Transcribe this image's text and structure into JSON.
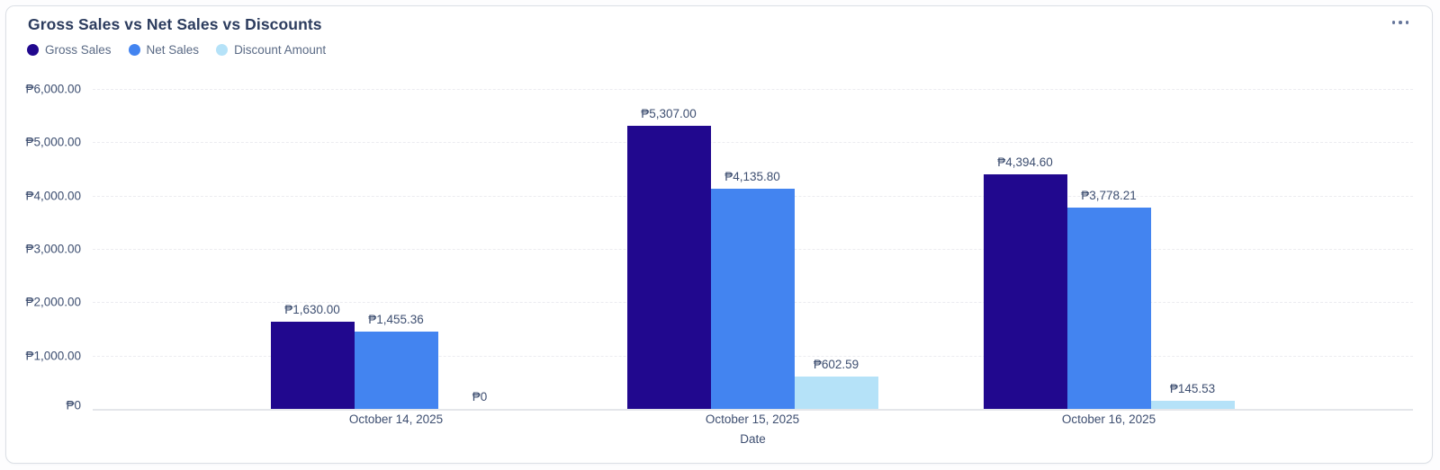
{
  "card": {
    "title": "Gross Sales vs Net Sales vs Discounts",
    "menu_icon": "ellipsis-icon"
  },
  "legend": [
    {
      "label": "Gross Sales",
      "color": "#21088e"
    },
    {
      "label": "Net Sales",
      "color": "#4384f0"
    },
    {
      "label": "Discount Amount",
      "color": "#b5e2f8"
    }
  ],
  "chart_data": {
    "type": "bar",
    "title": "Gross Sales vs Net Sales vs Discounts",
    "xlabel": "Date",
    "ylabel": "",
    "categories": [
      "October 14, 2025",
      "October 15, 2025",
      "October 16, 2025"
    ],
    "series": [
      {
        "name": "Gross Sales",
        "color": "#21088e",
        "values": [
          1630.0,
          5307.0,
          4394.6
        ],
        "labels": [
          "₱1,630.00",
          "₱5,307.00",
          "₱4,394.60"
        ]
      },
      {
        "name": "Net Sales",
        "color": "#4384f0",
        "values": [
          1455.36,
          4135.8,
          3778.21
        ],
        "labels": [
          "₱1,455.36",
          "₱4,135.80",
          "₱3,778.21"
        ]
      },
      {
        "name": "Discount Amount",
        "color": "#b5e2f8",
        "values": [
          0,
          602.59,
          145.53
        ],
        "labels": [
          "₱0",
          "₱602.59",
          "₱145.53"
        ]
      }
    ],
    "ylim": [
      0,
      6000
    ],
    "ytick_labels": [
      "₱0",
      "₱1,000.00",
      "₱2,000.00",
      "₱3,000.00",
      "₱4,000.00",
      "₱5,000.00",
      "₱6,000.00"
    ],
    "grid": "dashed-horizontal",
    "legend_position": "top-left"
  }
}
